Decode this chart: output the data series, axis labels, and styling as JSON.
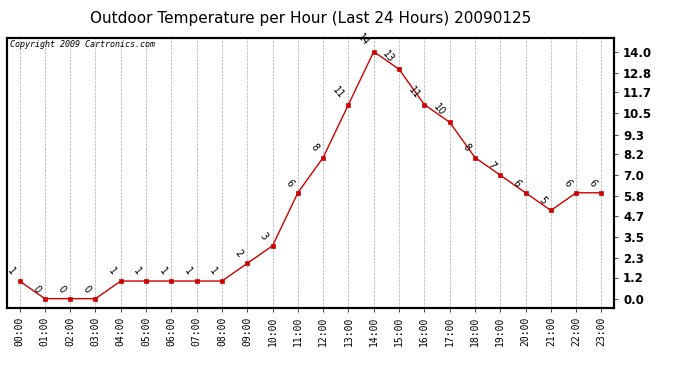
{
  "title": "Outdoor Temperature per Hour (Last 24 Hours) 20090125",
  "copyright": "Copyright 2009 Cartronics.com",
  "hours": [
    "00:00",
    "01:00",
    "02:00",
    "03:00",
    "04:00",
    "05:00",
    "06:00",
    "07:00",
    "08:00",
    "09:00",
    "10:00",
    "11:00",
    "12:00",
    "13:00",
    "14:00",
    "15:00",
    "16:00",
    "17:00",
    "18:00",
    "19:00",
    "20:00",
    "21:00",
    "22:00",
    "23:00"
  ],
  "values": [
    1,
    0,
    0,
    0,
    1,
    1,
    1,
    1,
    1,
    2,
    3,
    6,
    8,
    11,
    14,
    13,
    11,
    10,
    8,
    7,
    6,
    5,
    6,
    6
  ],
  "yticks": [
    0.0,
    1.2,
    2.3,
    3.5,
    4.7,
    5.8,
    7.0,
    8.2,
    9.3,
    10.5,
    11.7,
    12.8,
    14.0
  ],
  "line_color": "#cc0000",
  "marker_color": "#cc0000",
  "grid_color": "#aaaaaa",
  "background_color": "#ffffff",
  "title_fontsize": 11,
  "annotation_fontsize": 7,
  "tick_fontsize": 8.5,
  "xtick_fontsize": 7
}
